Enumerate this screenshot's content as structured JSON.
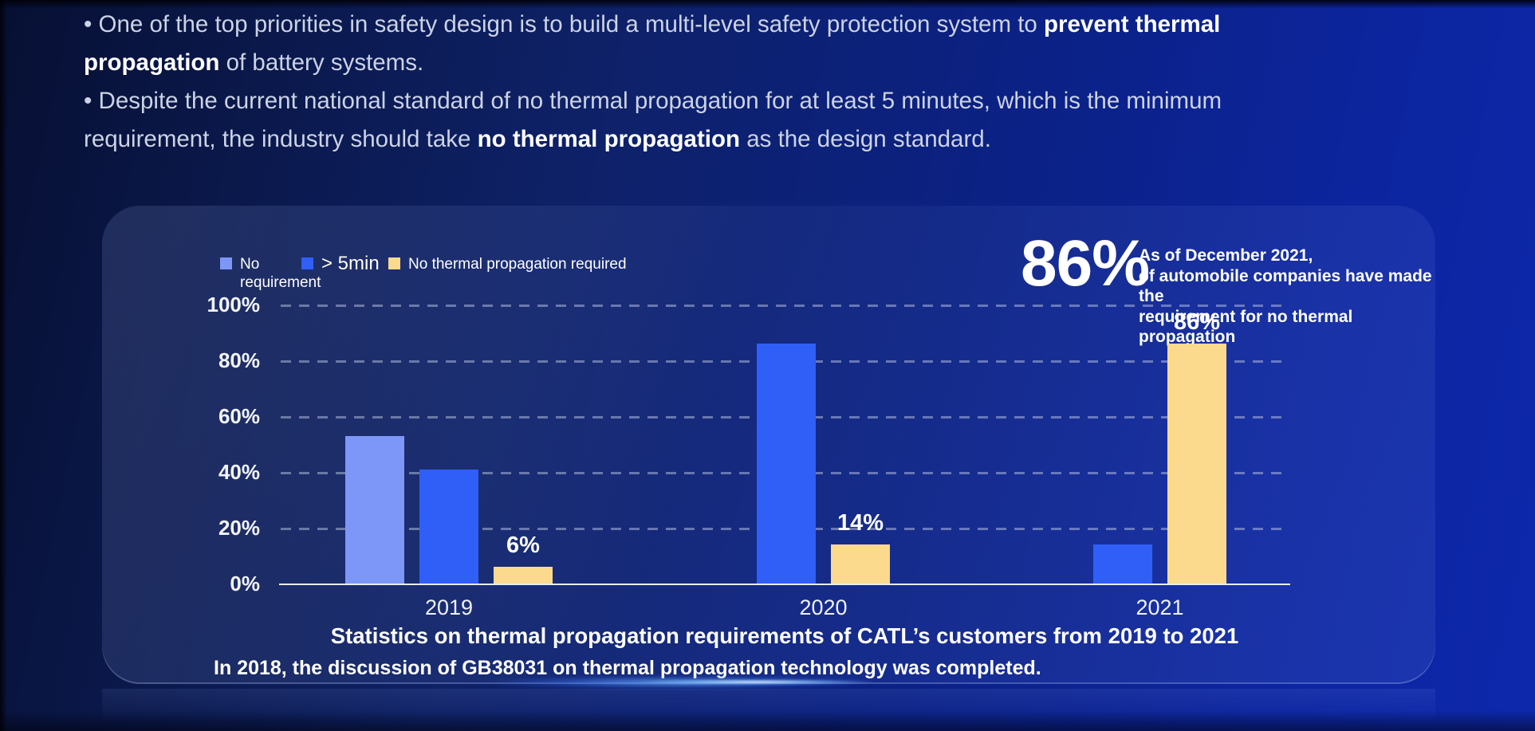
{
  "bullets": [
    {
      "segments": [
        {
          "text": "• One of the top priorities in safety design is to build a multi-level safety protection system to ",
          "bold": false
        },
        {
          "text": "prevent thermal\npropagation",
          "bold": true
        },
        {
          "text": " of battery systems.",
          "bold": false
        }
      ]
    },
    {
      "segments": [
        {
          "text": "• Despite the current national standard of no thermal propagation for at least 5 minutes, which is the minimum\nrequirement, the industry should take ",
          "bold": false
        },
        {
          "text": "no thermal propagation",
          "bold": true
        },
        {
          "text": " as the design standard.",
          "bold": false
        }
      ]
    }
  ],
  "card": {
    "stat": {
      "value": "86%",
      "lines": [
        "As of December 2021,",
        "of automobile companies have made the",
        "requirement for no thermal propagation"
      ]
    },
    "note": "In 2018, the discussion of GB38031 on thermal propagation technology was completed."
  },
  "chart_data": {
    "type": "bar",
    "title": "Statistics on thermal propagation requirements of CATL’s customers from 2019 to 2021",
    "categories": [
      "2019",
      "2020",
      "2021"
    ],
    "series": [
      {
        "name": "No requirement",
        "color": "#7d97f8",
        "values": [
          53,
          null,
          null
        ],
        "show_value_labels": false
      },
      {
        "name": "> 5min",
        "color": "#2f5ff7",
        "values": [
          41,
          86,
          14
        ],
        "show_value_labels": false
      },
      {
        "name": "No thermal propagation required",
        "color": "#fbda8e",
        "values": [
          6,
          14,
          86
        ],
        "show_value_labels": true
      }
    ],
    "value_label_format": "{v}%",
    "yticks": [
      {
        "label": "100%",
        "value": 100
      },
      {
        "label": "80%",
        "value": 80
      },
      {
        "label": "60%",
        "value": 60
      },
      {
        "label": "40%",
        "value": 40
      },
      {
        "label": "20%",
        "value": 20
      },
      {
        "label": "0%",
        "value": 0
      }
    ],
    "ylim": [
      0,
      100
    ],
    "grid": "horizontal-dashed",
    "legend_position": "top-left"
  }
}
